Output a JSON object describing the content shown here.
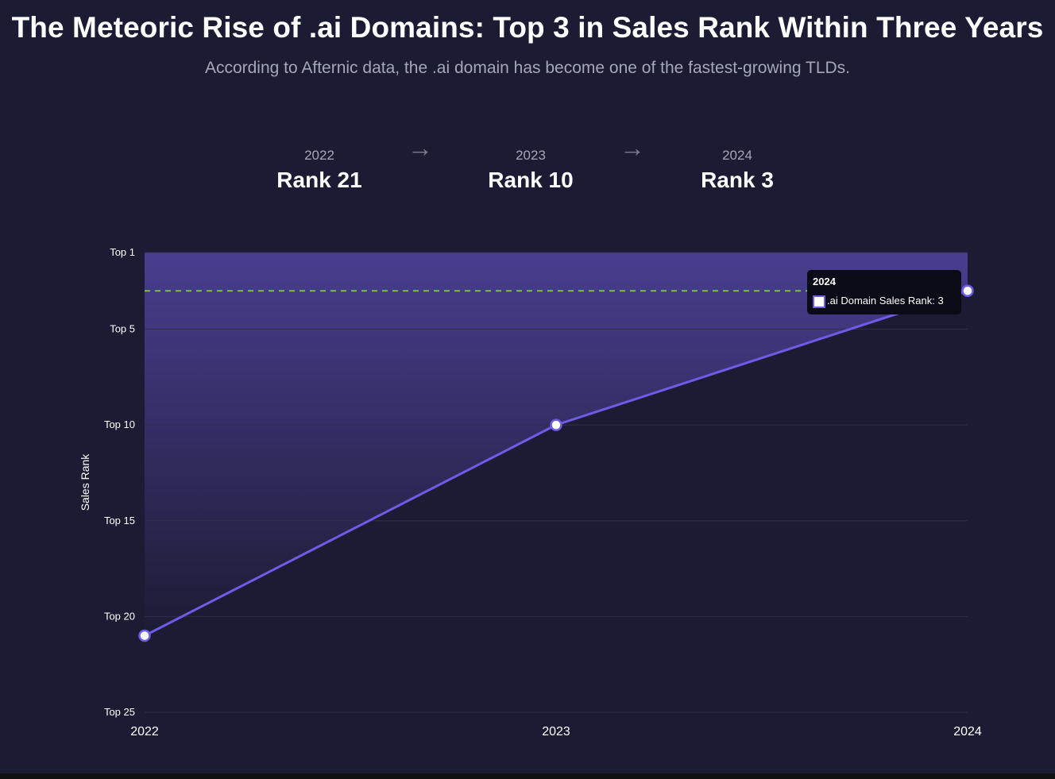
{
  "header": {
    "title": "The Meteoric Rise of .ai Domains: Top 3 in Sales Rank Within Three Years",
    "subtitle": "According to Afternic data, the .ai domain has become one of the fastest-growing TLDs."
  },
  "milestones": [
    {
      "year": "2022",
      "rank": "Rank 21"
    },
    {
      "year": "2023",
      "rank": "Rank 10"
    },
    {
      "year": "2024",
      "rank": "Rank 3"
    }
  ],
  "arrow_glyph": "→",
  "colors": {
    "background": "#1b1c33",
    "line": "#6c5ce7",
    "fill_top": "#473e8f",
    "target_line": "#7bc043",
    "grid": "#2e2f4d",
    "muted_text": "#a3a7bb"
  },
  "chart_data": {
    "type": "area",
    "x": [
      "2022",
      "2023",
      "2024"
    ],
    "series": [
      {
        "name": ".ai Domain Sales Rank",
        "values": [
          21,
          10,
          3
        ]
      }
    ],
    "ylabel": "Sales Rank",
    "xlabel": "",
    "y_reversed": true,
    "ylim": [
      1,
      25
    ],
    "yticks": [
      {
        "value": 1,
        "label": "Top 1"
      },
      {
        "value": 5,
        "label": "Top 5"
      },
      {
        "value": 10,
        "label": "Top 10"
      },
      {
        "value": 15,
        "label": "Top 15"
      },
      {
        "value": 20,
        "label": "Top 20"
      },
      {
        "value": 25,
        "label": "Top 25"
      }
    ],
    "reference_line": {
      "value": 3,
      "style": "dashed"
    },
    "grid": true,
    "tooltip": {
      "title": "2024",
      "label": ".ai Domain Sales Rank: 3"
    }
  }
}
